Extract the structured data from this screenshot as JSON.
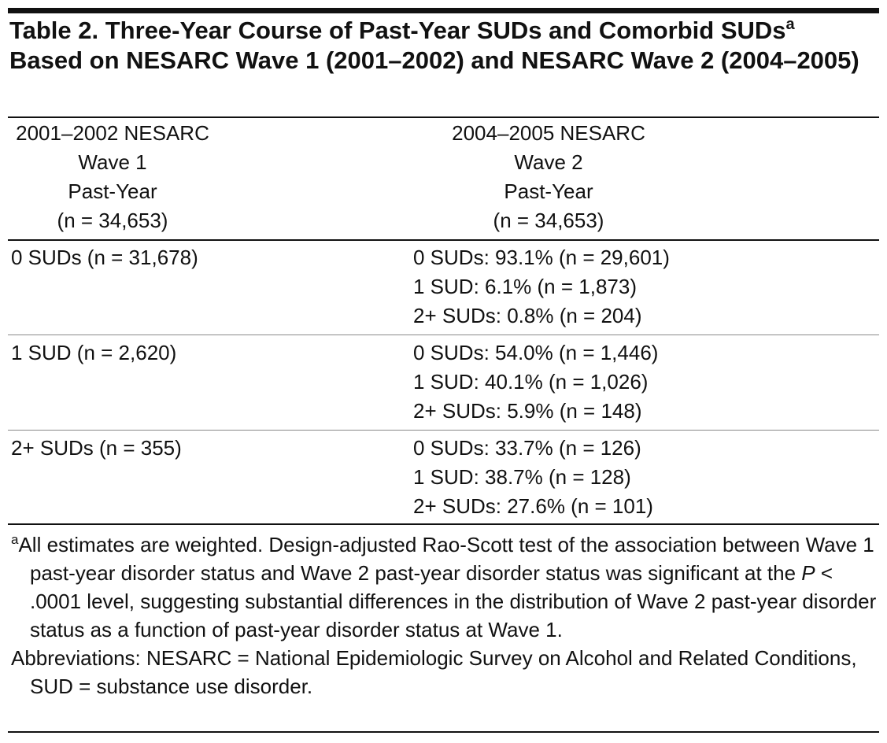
{
  "title": {
    "main": "Table 2. Three-Year Course of Past-Year SUDs and Comorbid SUDs",
    "sup": "a",
    "rest": "Based on NESARC Wave 1 (2001–2002) and NESARC Wave 2 (2004–2005)"
  },
  "table": {
    "header": [
      [
        "2001–2002 NESARC",
        "Wave 1",
        "Past-Year",
        "(n = 34,653)"
      ],
      [
        "2004–2005 NESARC",
        "Wave 2",
        "Past-Year",
        "(n = 34,653)"
      ]
    ],
    "rows": [
      {
        "label": "0 SUDs (n = 31,678)",
        "outcomes": [
          "0 SUDs: 93.1% (n = 29,601)",
          "1 SUD: 6.1% (n = 1,873)",
          "2+ SUDs: 0.8% (n = 204)"
        ]
      },
      {
        "label": "1 SUD (n = 2,620)",
        "outcomes": [
          "0 SUDs: 54.0% (n = 1,446)",
          "1 SUD: 40.1% (n = 1,026)",
          "2+ SUDs: 5.9% (n = 148)"
        ]
      },
      {
        "label": "2+ SUDs (n = 355)",
        "outcomes": [
          "0 SUDs: 33.7% (n = 126)",
          "1 SUD: 38.7% (n = 128)",
          "2+ SUDs: 27.6% (n = 101)"
        ]
      }
    ]
  },
  "footnotes": {
    "a": {
      "marker": "a",
      "before": "All estimates are weighted. Design-adjusted Rao-Scott test of the association between Wave 1 past-year disorder status and Wave 2 past-year disorder status was significant at the ",
      "italic": "P",
      "after": " < .0001 level, suggesting substantial differences in the distribution of Wave 2 past-year disorder status as a function of past-year disorder status at Wave 1."
    },
    "abbreviations": "Abbreviations: NESARC = National Epidemiologic Survey on Alcohol and Related Conditions, SUD = substance use disorder."
  }
}
